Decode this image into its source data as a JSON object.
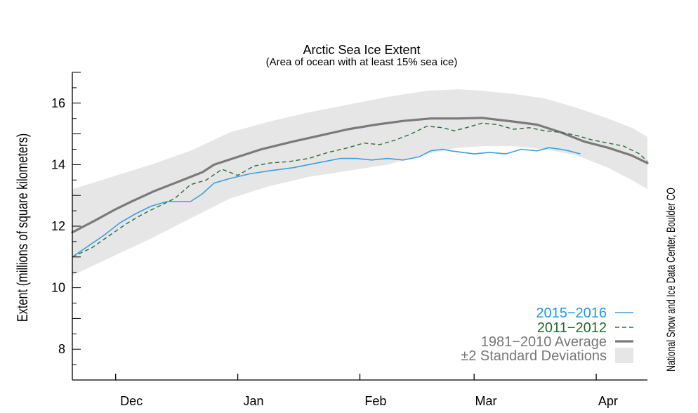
{
  "chart_data": {
    "type": "line",
    "title": "Arctic Sea Ice Extent",
    "subtitle": "(Area of ocean with at least 15% sea ice)",
    "ylabel": "Extent (millions of square kilometers)",
    "xlabel": "",
    "credit": "National Snow and Ice Data Center, Boulder CO",
    "ylim": [
      7,
      17
    ],
    "y_ticks": [
      8,
      10,
      12,
      14,
      16
    ],
    "xlim": [
      0,
      146
    ],
    "x_units": "days since Nov 20",
    "month_boundaries": [
      11,
      42,
      73,
      102,
      133
    ],
    "months": [
      {
        "label": "Dec",
        "x": 15
      },
      {
        "label": "Jan",
        "x": 46
      },
      {
        "label": "Feb",
        "x": 77
      },
      {
        "label": "Mar",
        "x": 105
      },
      {
        "label": "Apr",
        "x": 136
      }
    ],
    "legend_position": "bottom-right",
    "legend": [
      {
        "label": "2015−2016",
        "series": "s2015"
      },
      {
        "label": "2011−2012",
        "series": "s2011"
      },
      {
        "label": "1981−2010 Average",
        "series": "avg"
      },
      {
        "label": "±2 Standard Deviations",
        "series": "band"
      }
    ],
    "colors": {
      "s2015": "#3aa0e0",
      "s2011": "#2a6e35",
      "avg": "#7a7a7a",
      "band": "#e6e6e6",
      "label2015": "#1a9be0",
      "label2011": "#1f6b2a",
      "labelavg": "#777777"
    },
    "series": [
      {
        "name": "1981−2010 Average",
        "key": "avg",
        "x": [
          0,
          6,
          11,
          15,
          21,
          28,
          33,
          36,
          42,
          48,
          56,
          63,
          70,
          77,
          84,
          91,
          98,
          104,
          112,
          118,
          124,
          130,
          136,
          142,
          146
        ],
        "y": [
          11.8,
          12.2,
          12.55,
          12.8,
          13.15,
          13.5,
          13.75,
          14.0,
          14.25,
          14.5,
          14.75,
          14.95,
          15.15,
          15.3,
          15.42,
          15.5,
          15.5,
          15.52,
          15.4,
          15.3,
          15.05,
          14.75,
          14.55,
          14.3,
          14.05
        ]
      },
      {
        "name": "±2 Standard Deviations upper",
        "key": "band_upper",
        "x": [
          0,
          10,
          20,
          30,
          40,
          50,
          60,
          70,
          80,
          90,
          98,
          104,
          112,
          120,
          128,
          136,
          142,
          146
        ],
        "y": [
          13.2,
          13.6,
          14.0,
          14.45,
          15.05,
          15.4,
          15.7,
          15.95,
          16.2,
          16.4,
          16.45,
          16.4,
          16.3,
          16.15,
          15.85,
          15.5,
          15.2,
          14.9
        ]
      },
      {
        "name": "±2 Standard Deviations lower",
        "key": "band_lower",
        "x": [
          0,
          10,
          20,
          30,
          40,
          50,
          60,
          70,
          80,
          90,
          98,
          104,
          112,
          120,
          128,
          136,
          142,
          146
        ],
        "y": [
          10.4,
          11.0,
          11.6,
          12.25,
          12.9,
          13.3,
          13.6,
          13.8,
          14.0,
          14.35,
          14.55,
          14.6,
          14.6,
          14.5,
          14.3,
          13.9,
          13.5,
          13.2
        ]
      },
      {
        "name": "2015−2016",
        "key": "s2015",
        "x": [
          0,
          4,
          8,
          12,
          16,
          20,
          24,
          27,
          30,
          33,
          36,
          40,
          45,
          50,
          56,
          62,
          68,
          72,
          76,
          80,
          84,
          88,
          91,
          94,
          96,
          99,
          102,
          106,
          110,
          114,
          118,
          121,
          124,
          126,
          129
        ],
        "y": [
          11.0,
          11.35,
          11.7,
          12.1,
          12.4,
          12.65,
          12.8,
          12.8,
          12.8,
          13.05,
          13.4,
          13.55,
          13.7,
          13.8,
          13.9,
          14.05,
          14.2,
          14.2,
          14.15,
          14.2,
          14.15,
          14.25,
          14.45,
          14.5,
          14.45,
          14.4,
          14.35,
          14.4,
          14.35,
          14.5,
          14.45,
          14.55,
          14.5,
          14.45,
          14.35
        ]
      },
      {
        "name": "2011−2012",
        "key": "s2011",
        "x": [
          0,
          5,
          10,
          14,
          18,
          22,
          26,
          30,
          34,
          38,
          42,
          46,
          50,
          55,
          60,
          65,
          70,
          74,
          78,
          82,
          86,
          90,
          94,
          97,
          100,
          104,
          108,
          112,
          116,
          120,
          124,
          128,
          132,
          136,
          140,
          144,
          146
        ],
        "y": [
          11.0,
          11.3,
          11.75,
          12.1,
          12.4,
          12.65,
          12.9,
          13.35,
          13.5,
          13.85,
          13.65,
          13.95,
          14.05,
          14.1,
          14.2,
          14.4,
          14.55,
          14.7,
          14.65,
          14.8,
          15.0,
          15.25,
          15.2,
          15.1,
          15.2,
          15.35,
          15.3,
          15.15,
          15.2,
          15.1,
          15.05,
          14.95,
          14.8,
          14.7,
          14.6,
          14.35,
          14.1
        ]
      }
    ]
  }
}
